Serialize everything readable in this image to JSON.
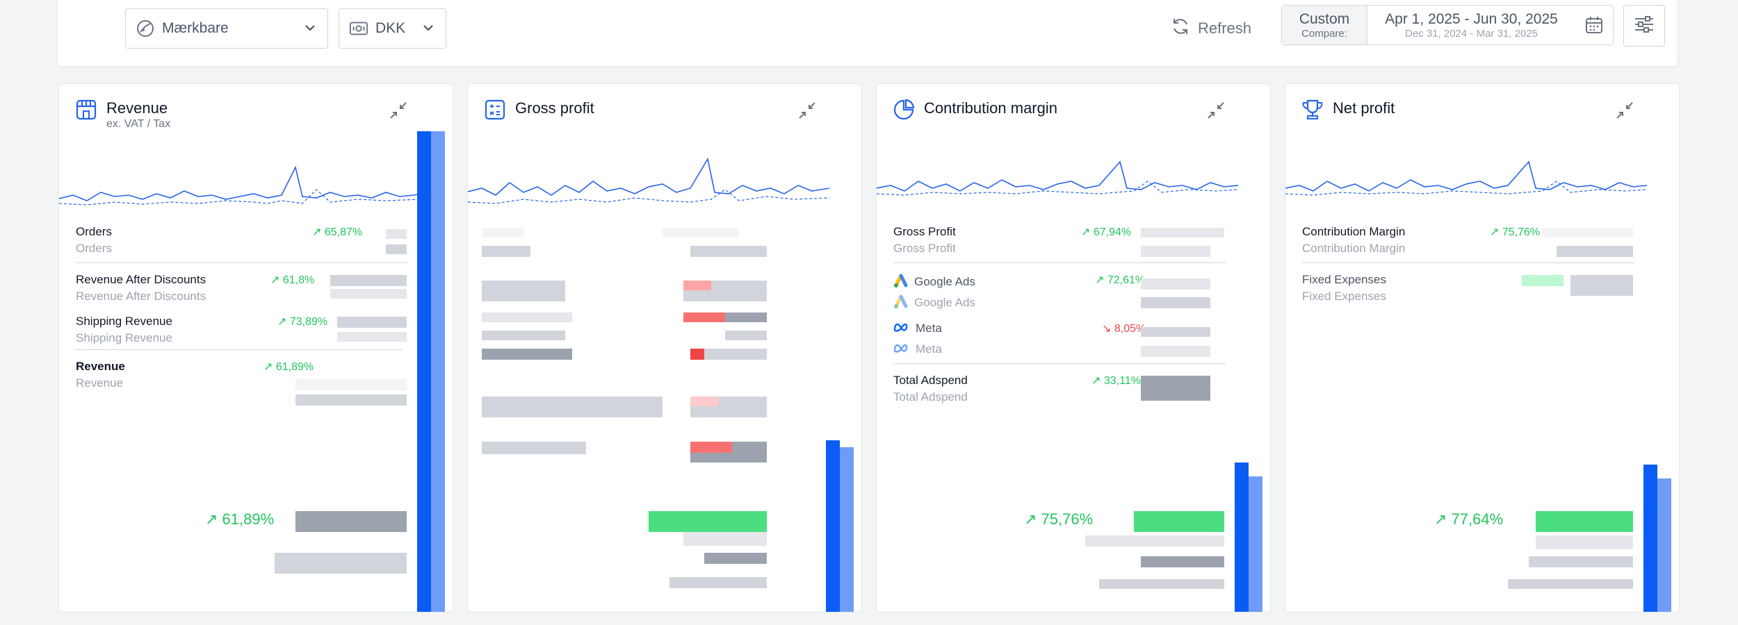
{
  "toolbar": {
    "brand_select": "Mærkbare",
    "currency_select": "DKK",
    "refresh_label": "Refresh",
    "date_mode": "Custom",
    "compare_label": "Compare:",
    "date_range": "Apr 1, 2025 - Jun 30, 2025",
    "compare_range": "Dec 31, 2024 - Mar 31, 2025"
  },
  "cards": [
    {
      "title": "Revenue",
      "subtitle": "ex. VAT / Tax",
      "rows": [
        {
          "name": "Orders",
          "sub": "Orders",
          "pct": "65,87%"
        },
        {
          "name": "Revenue After Discounts",
          "sub": "Revenue After Discounts",
          "pct": "61,8%"
        },
        {
          "name": "Shipping Revenue",
          "sub": "Shipping Revenue",
          "pct": "73,89%"
        },
        {
          "name": "Revenue",
          "sub": "Revenue",
          "pct": "61,89%"
        }
      ],
      "total_pct": "61,89%",
      "bar_levels": {
        "current": 1.0,
        "previous": 1.0
      }
    },
    {
      "title": "Gross profit",
      "rows": [],
      "total_pct": "",
      "bar_levels": {
        "current": 0.36,
        "previous": 0.35
      }
    },
    {
      "title": "Contribution margin",
      "rows": [
        {
          "name": "Gross Profit",
          "sub": "Gross Profit",
          "pct": "67,94%"
        },
        {
          "name": "Google Ads",
          "sub": "Google Ads",
          "pct": "72,61%",
          "icon": "google-ads-logo-icon"
        },
        {
          "name": "Meta",
          "sub": "Meta",
          "pct": "8,05%",
          "icon": "meta-logo-icon",
          "trend": "down"
        },
        {
          "name": "Total Adspend",
          "sub": "Total Adspend",
          "pct": "33,11%"
        }
      ],
      "total_pct": "75,76%",
      "bar_levels": {
        "current": 0.31,
        "previous": 0.29
      }
    },
    {
      "title": "Net profit",
      "rows": [
        {
          "name": "Contribution Margin",
          "sub": "Contribution Margin",
          "pct": "75,76%"
        },
        {
          "name": "Fixed Expenses",
          "sub": "Fixed Expenses",
          "pct": ""
        }
      ],
      "total_pct": "77,64%",
      "bar_levels": {
        "current": 0.3,
        "previous": 0.28
      }
    }
  ],
  "colors": {
    "accent_blue": "#0a5cf5",
    "light_blue": "#6f9cf7",
    "positive": "#22c55e",
    "negative": "#ef4444"
  }
}
